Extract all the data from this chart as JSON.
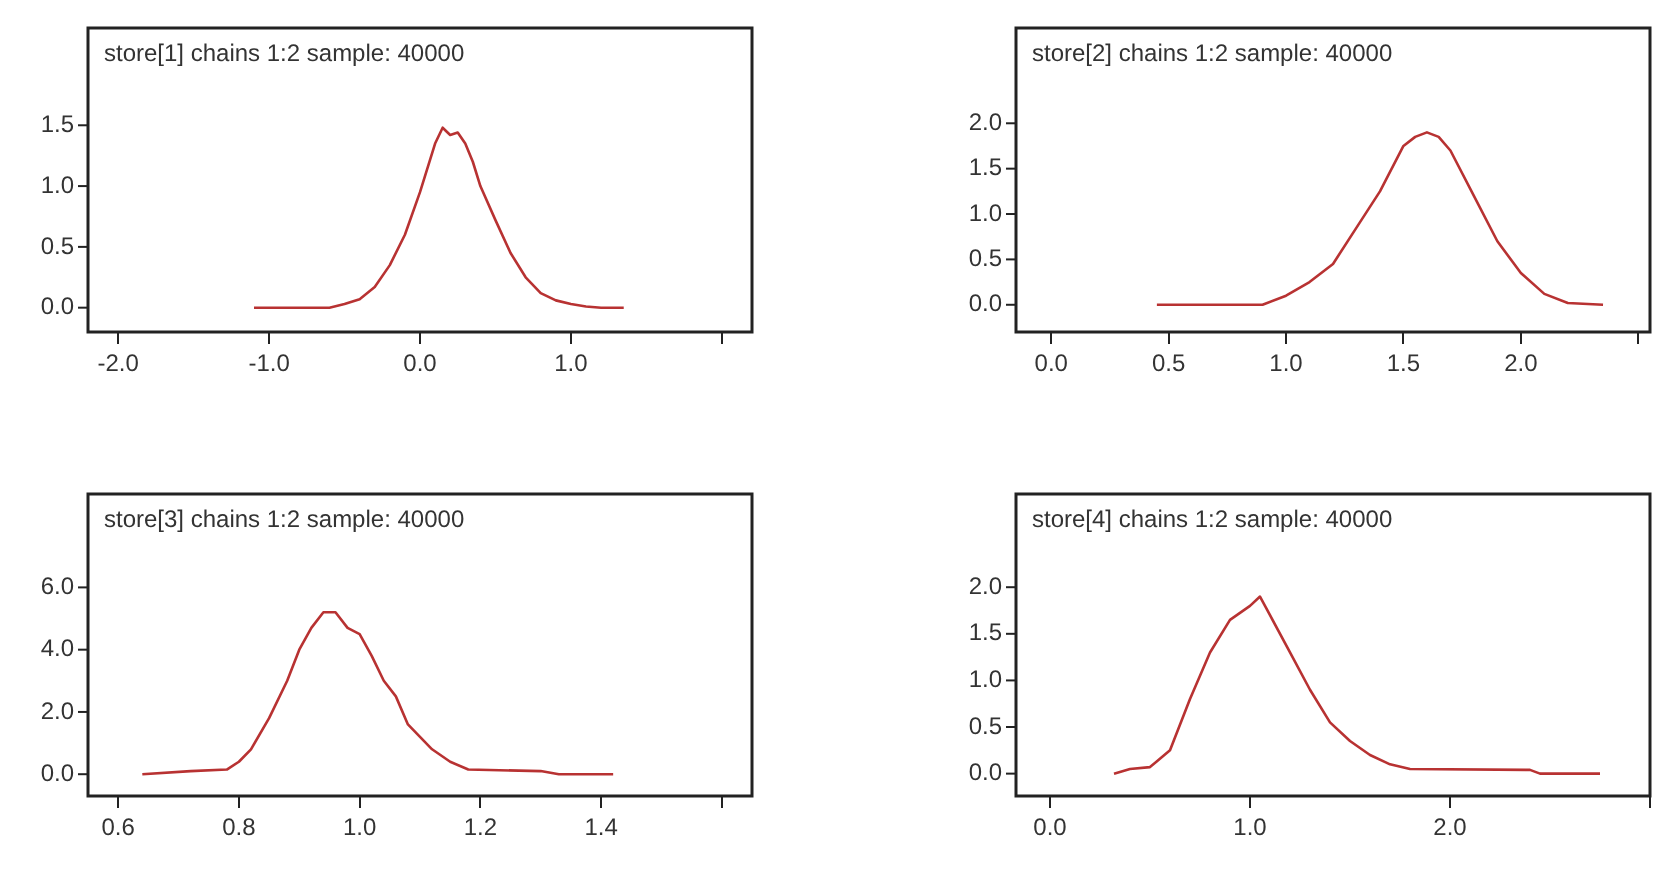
{
  "chart_data": [
    {
      "type": "line",
      "title": "store[1] chains 1:2 sample: 40000",
      "legend": false,
      "grid": false,
      "marker": "none",
      "series": [
        {
          "color": "#b83232",
          "x": [
            -1.1,
            -0.6,
            -0.5,
            -0.4,
            -0.3,
            -0.2,
            -0.1,
            0.0,
            0.05,
            0.1,
            0.15,
            0.2,
            0.25,
            0.3,
            0.35,
            0.4,
            0.5,
            0.6,
            0.7,
            0.8,
            0.9,
            1.0,
            1.1,
            1.2,
            1.35
          ],
          "values": [
            0,
            0,
            0.03,
            0.07,
            0.17,
            0.35,
            0.6,
            0.95,
            1.15,
            1.35,
            1.48,
            1.42,
            1.44,
            1.35,
            1.2,
            1.0,
            0.72,
            0.45,
            0.25,
            0.12,
            0.06,
            0.03,
            0.01,
            0,
            0
          ]
        }
      ],
      "xlim": [
        -2.2,
        2.2
      ],
      "xticks": [
        {
          "value": -2,
          "label": "-2.0"
        },
        {
          "value": -1,
          "label": "-1.0"
        },
        {
          "value": 0,
          "label": "0.0"
        },
        {
          "value": 1,
          "label": "1.0"
        },
        {
          "value": 2,
          "label": null
        }
      ],
      "ylim": [
        -0.2,
        2.3
      ],
      "yticks": [
        {
          "value": 0,
          "label": "0.0"
        },
        {
          "value": 0.5,
          "label": "0.5"
        },
        {
          "value": 1,
          "label": "1.0"
        },
        {
          "value": 1.5,
          "label": "1.5"
        }
      ]
    },
    {
      "type": "line",
      "title": "store[2] chains 1:2 sample: 40000",
      "legend": false,
      "grid": false,
      "marker": "none",
      "series": [
        {
          "color": "#b83232",
          "x": [
            0.45,
            0.9,
            1.0,
            1.1,
            1.2,
            1.3,
            1.4,
            1.5,
            1.55,
            1.6,
            1.65,
            1.7,
            1.8,
            1.9,
            2.0,
            2.1,
            2.2,
            2.35
          ],
          "values": [
            0,
            0,
            0.1,
            0.25,
            0.45,
            0.85,
            1.25,
            1.75,
            1.85,
            1.9,
            1.85,
            1.7,
            1.2,
            0.7,
            0.35,
            0.12,
            0.02,
            0
          ]
        }
      ],
      "xlim": [
        -0.15,
        2.55
      ],
      "xticks": [
        {
          "value": 0,
          "label": "0.0"
        },
        0.5,
        {
          "value": 1,
          "label": "1.0"
        },
        1.5,
        {
          "value": 2,
          "label": "2.0"
        },
        {
          "value": 2.5,
          "label": null
        }
      ],
      "ylim": [
        -0.3,
        3.05
      ],
      "yticks": [
        {
          "value": 0,
          "label": "0.0"
        },
        {
          "value": 0.5,
          "label": "0.5"
        },
        {
          "value": 1,
          "label": "1.0"
        },
        {
          "value": 1.5,
          "label": "1.5"
        },
        {
          "value": 2,
          "label": "2.0"
        }
      ]
    },
    {
      "type": "line",
      "title": "store[3] chains 1:2 sample: 40000",
      "legend": false,
      "grid": false,
      "marker": "none",
      "series": [
        {
          "color": "#b83232",
          "x": [
            0.64,
            0.72,
            0.78,
            0.8,
            0.82,
            0.85,
            0.88,
            0.9,
            0.92,
            0.94,
            0.96,
            0.98,
            1.0,
            1.02,
            1.04,
            1.06,
            1.08,
            1.1,
            1.12,
            1.15,
            1.18,
            1.3,
            1.33,
            1.42
          ],
          "values": [
            0,
            0.1,
            0.15,
            0.4,
            0.8,
            1.8,
            3.0,
            4.0,
            4.7,
            5.2,
            5.2,
            4.7,
            4.5,
            3.8,
            3.0,
            2.5,
            1.6,
            1.2,
            0.8,
            0.4,
            0.15,
            0.1,
            0,
            0
          ]
        }
      ],
      "xlim": [
        0.55,
        1.65
      ],
      "xticks": [
        0.6,
        0.8,
        {
          "value": 1,
          "label": "1.0"
        },
        1.2,
        1.4,
        {
          "value": 1.6,
          "label": null
        }
      ],
      "ylim": [
        -0.7,
        9.0
      ],
      "yticks": [
        {
          "value": 0,
          "label": "0.0"
        },
        {
          "value": 2,
          "label": "2.0"
        },
        {
          "value": 4,
          "label": "4.0"
        },
        {
          "value": 6,
          "label": "6.0"
        }
      ]
    },
    {
      "type": "line",
      "title": "store[4] chains 1:2 sample: 40000",
      "legend": false,
      "grid": false,
      "marker": "none",
      "series": [
        {
          "color": "#b83232",
          "x": [
            0.32,
            0.4,
            0.5,
            0.6,
            0.7,
            0.8,
            0.9,
            1.0,
            1.05,
            1.1,
            1.2,
            1.3,
            1.4,
            1.5,
            1.6,
            1.7,
            1.8,
            2.4,
            2.45,
            2.75
          ],
          "values": [
            0,
            0.05,
            0.07,
            0.25,
            0.8,
            1.3,
            1.65,
            1.8,
            1.9,
            1.7,
            1.3,
            0.9,
            0.55,
            0.35,
            0.2,
            0.1,
            0.05,
            0.04,
            0,
            0
          ]
        }
      ],
      "xlim": [
        -0.17,
        3.0
      ],
      "xticks": [
        {
          "value": 0,
          "label": "0.0"
        },
        {
          "value": 1,
          "label": "1.0"
        },
        {
          "value": 2,
          "label": "2.0"
        },
        {
          "value": 3,
          "label": null
        }
      ],
      "ylim": [
        -0.24,
        3.0
      ],
      "yticks": [
        {
          "value": 0,
          "label": "0.0"
        },
        {
          "value": 0.5,
          "label": "0.5"
        },
        {
          "value": 1,
          "label": "1.0"
        },
        {
          "value": 1.5,
          "label": "1.5"
        },
        {
          "value": 2,
          "label": "2.0"
        }
      ]
    }
  ]
}
